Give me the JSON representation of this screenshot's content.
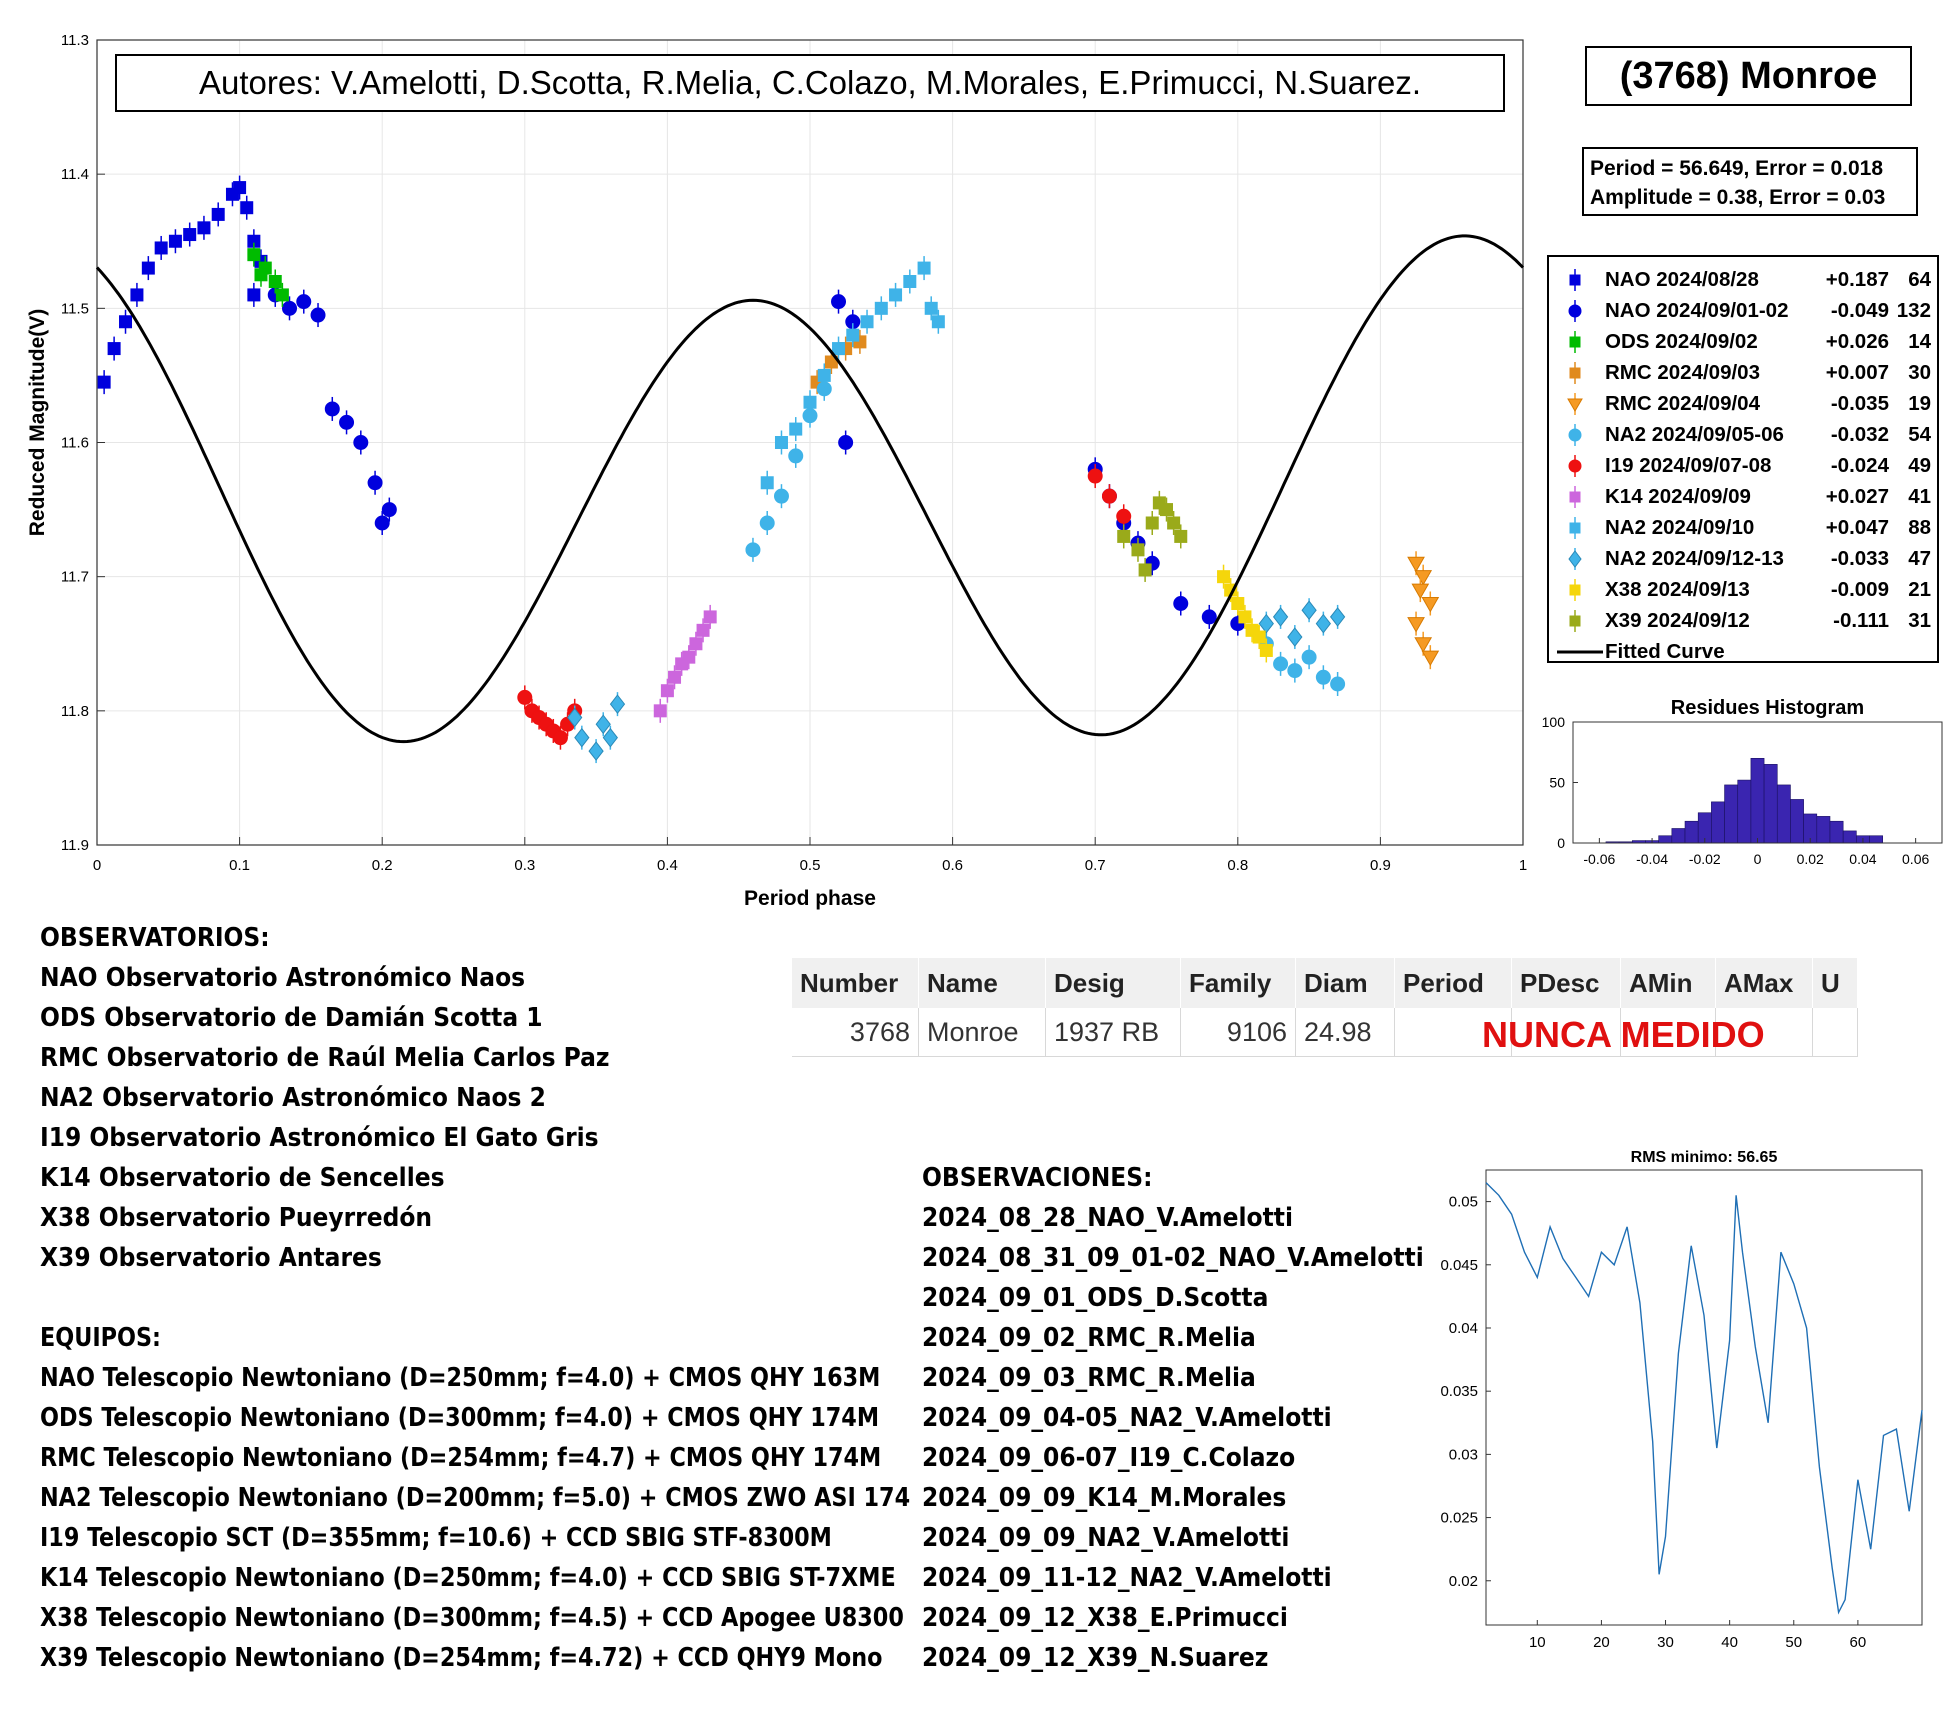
{
  "chart_data": [
    {
      "type": "scatter",
      "title": "",
      "xlabel": "Period phase",
      "ylabel": "Reduced Magnitude(V)",
      "xlim": [
        0,
        1
      ],
      "ylim": [
        11.3,
        11.9
      ],
      "y_reversed": true,
      "x_ticks": [
        "0",
        "0.1",
        "0.2",
        "0.3",
        "0.4",
        "0.5",
        "0.6",
        "0.7",
        "0.8",
        "0.9",
        "1"
      ],
      "y_ticks": [
        "11.3",
        "11.4",
        "11.5",
        "11.6",
        "11.7",
        "11.8",
        "11.9"
      ],
      "grid": true,
      "legend_position": "right",
      "authors": "Autores: V.Amelotti, D.Scotta, R.Melia, C.Colazo, M.Morales, E.Primucci, N.Suarez.",
      "target": "(3768) Monroe",
      "period_text": "Period =  56.649, Error = 0.018",
      "amplitude_text": "Amplitude = 0.38, Error = 0.03",
      "fitted_curve": {
        "name": "Fitted Curve",
        "mean": 11.645,
        "harmonics": [
          {
            "k": 1,
            "cos": -0.0226,
            "sin": 0.0085
          },
          {
            "k": 2,
            "cos": -0.1528,
            "sin": 0.0853
          }
        ]
      },
      "series": [
        {
          "name": "NAO 2024/08/28",
          "offset": "+0.187",
          "count": "64",
          "marker": "square",
          "color": "#0000dd",
          "points": [
            [
              0.005,
              11.555
            ],
            [
              0.012,
              11.53
            ],
            [
              0.02,
              11.51
            ],
            [
              0.028,
              11.49
            ],
            [
              0.036,
              11.47
            ],
            [
              0.045,
              11.455
            ],
            [
              0.055,
              11.45
            ],
            [
              0.065,
              11.445
            ],
            [
              0.075,
              11.44
            ],
            [
              0.085,
              11.43
            ],
            [
              0.095,
              11.415
            ],
            [
              0.1,
              11.41
            ],
            [
              0.105,
              11.425
            ],
            [
              0.11,
              11.45
            ],
            [
              0.115,
              11.465
            ],
            [
              0.11,
              11.49
            ]
          ]
        },
        {
          "name": "NAO 2024/09/01-02",
          "offset": "-0.049",
          "count": "132",
          "marker": "circle",
          "color": "#0000dd",
          "points": [
            [
              0.125,
              11.49
            ],
            [
              0.135,
              11.5
            ],
            [
              0.145,
              11.495
            ],
            [
              0.155,
              11.505
            ],
            [
              0.165,
              11.575
            ],
            [
              0.175,
              11.585
            ],
            [
              0.185,
              11.6
            ],
            [
              0.195,
              11.63
            ],
            [
              0.205,
              11.65
            ],
            [
              0.2,
              11.66
            ],
            [
              0.52,
              11.495
            ],
            [
              0.53,
              11.51
            ],
            [
              0.525,
              11.6
            ],
            [
              0.7,
              11.62
            ],
            [
              0.71,
              11.64
            ],
            [
              0.72,
              11.66
            ],
            [
              0.73,
              11.675
            ],
            [
              0.74,
              11.69
            ],
            [
              0.76,
              11.72
            ],
            [
              0.78,
              11.73
            ],
            [
              0.8,
              11.735
            ]
          ]
        },
        {
          "name": "ODS 2024/09/02",
          "offset": "+0.026",
          "count": "14",
          "marker": "square",
          "color": "#00bb00",
          "points": [
            [
              0.11,
              11.46
            ],
            [
              0.118,
              11.47
            ],
            [
              0.125,
              11.48
            ],
            [
              0.13,
              11.49
            ],
            [
              0.115,
              11.475
            ]
          ]
        },
        {
          "name": "RMC 2024/09/03",
          "offset": "+0.007",
          "count": "30",
          "marker": "square",
          "color": "#e08a1e",
          "points": [
            [
              0.505,
              11.555
            ],
            [
              0.515,
              11.54
            ],
            [
              0.525,
              11.53
            ],
            [
              0.535,
              11.525
            ]
          ]
        },
        {
          "name": "RMC 2024/09/04",
          "offset": "-0.035",
          "count": "19",
          "marker": "triangle-down",
          "color": "#f59a23",
          "points": [
            [
              0.925,
              11.69
            ],
            [
              0.93,
              11.7
            ],
            [
              0.935,
              11.72
            ],
            [
              0.925,
              11.735
            ],
            [
              0.93,
              11.75
            ],
            [
              0.935,
              11.76
            ],
            [
              0.928,
              11.71
            ]
          ]
        },
        {
          "name": "NA2 2024/09/05-06",
          "offset": "-0.032",
          "count": "54",
          "marker": "circle",
          "color": "#3fb3e8",
          "points": [
            [
              0.46,
              11.68
            ],
            [
              0.47,
              11.66
            ],
            [
              0.48,
              11.64
            ],
            [
              0.49,
              11.61
            ],
            [
              0.5,
              11.58
            ],
            [
              0.51,
              11.56
            ],
            [
              0.82,
              11.75
            ],
            [
              0.83,
              11.765
            ],
            [
              0.84,
              11.77
            ],
            [
              0.85,
              11.76
            ],
            [
              0.86,
              11.775
            ],
            [
              0.87,
              11.78
            ]
          ]
        },
        {
          "name": "I19 2024/09/07-08",
          "offset": "-0.024",
          "count": "49",
          "marker": "circle",
          "color": "#ee1111",
          "points": [
            [
              0.3,
              11.79
            ],
            [
              0.305,
              11.8
            ],
            [
              0.31,
              11.805
            ],
            [
              0.315,
              11.81
            ],
            [
              0.32,
              11.815
            ],
            [
              0.325,
              11.82
            ],
            [
              0.33,
              11.81
            ],
            [
              0.335,
              11.8
            ],
            [
              0.7,
              11.625
            ],
            [
              0.71,
              11.64
            ],
            [
              0.72,
              11.655
            ]
          ]
        },
        {
          "name": "K14 2024/09/09",
          "offset": "+0.027",
          "count": "41",
          "marker": "square",
          "color": "#cc66dd",
          "points": [
            [
              0.395,
              11.8
            ],
            [
              0.4,
              11.785
            ],
            [
              0.405,
              11.775
            ],
            [
              0.41,
              11.765
            ],
            [
              0.415,
              11.76
            ],
            [
              0.42,
              11.75
            ],
            [
              0.425,
              11.74
            ],
            [
              0.43,
              11.73
            ]
          ]
        },
        {
          "name": "NA2 2024/09/10",
          "offset": "+0.047",
          "count": "88",
          "marker": "square",
          "color": "#3fb3e8",
          "points": [
            [
              0.47,
              11.63
            ],
            [
              0.48,
              11.6
            ],
            [
              0.49,
              11.59
            ],
            [
              0.5,
              11.57
            ],
            [
              0.51,
              11.55
            ],
            [
              0.52,
              11.53
            ],
            [
              0.53,
              11.52
            ],
            [
              0.54,
              11.51
            ],
            [
              0.55,
              11.5
            ],
            [
              0.56,
              11.49
            ],
            [
              0.57,
              11.48
            ],
            [
              0.58,
              11.47
            ],
            [
              0.585,
              11.5
            ],
            [
              0.59,
              11.51
            ]
          ]
        },
        {
          "name": "NA2 2024/09/12-13",
          "offset": "-0.033",
          "count": "47",
          "marker": "diamond",
          "color": "#3fb3e8",
          "points": [
            [
              0.335,
              11.805
            ],
            [
              0.34,
              11.82
            ],
            [
              0.35,
              11.83
            ],
            [
              0.355,
              11.81
            ],
            [
              0.36,
              11.82
            ],
            [
              0.365,
              11.795
            ],
            [
              0.82,
              11.735
            ],
            [
              0.83,
              11.73
            ],
            [
              0.84,
              11.745
            ],
            [
              0.85,
              11.725
            ],
            [
              0.86,
              11.735
            ],
            [
              0.87,
              11.73
            ]
          ]
        },
        {
          "name": "X38 2024/09/13",
          "offset": "-0.009",
          "count": "21",
          "marker": "square",
          "color": "#f5d60b",
          "points": [
            [
              0.79,
              11.7
            ],
            [
              0.795,
              11.71
            ],
            [
              0.8,
              11.72
            ],
            [
              0.805,
              11.73
            ],
            [
              0.81,
              11.74
            ],
            [
              0.815,
              11.745
            ],
            [
              0.82,
              11.755
            ]
          ]
        },
        {
          "name": "X39 2024/09/12",
          "offset": "-0.111",
          "count": "31",
          "marker": "square",
          "color": "#9aaa1a",
          "points": [
            [
              0.72,
              11.67
            ],
            [
              0.73,
              11.68
            ],
            [
              0.74,
              11.66
            ],
            [
              0.745,
              11.645
            ],
            [
              0.75,
              11.65
            ],
            [
              0.755,
              11.66
            ],
            [
              0.76,
              11.67
            ],
            [
              0.735,
              11.695
            ]
          ]
        }
      ]
    },
    {
      "type": "bar",
      "title": "Residues Histogram",
      "xlim": [
        -0.07,
        0.07
      ],
      "ylim": [
        0,
        100
      ],
      "x_ticks": [
        "-0.06",
        "-0.04",
        "-0.02",
        "0",
        "0.02",
        "0.04",
        "0.06"
      ],
      "y_ticks": [
        "0",
        "50",
        "100"
      ],
      "bin_width": 0.005,
      "bin_centers": [
        -0.055,
        -0.05,
        -0.045,
        -0.04,
        -0.035,
        -0.03,
        -0.025,
        -0.02,
        -0.015,
        -0.01,
        -0.005,
        0,
        0.005,
        0.01,
        0.015,
        0.02,
        0.025,
        0.03,
        0.035,
        0.04,
        0.045
      ],
      "values": [
        1,
        1,
        2,
        2,
        6,
        12,
        18,
        25,
        34,
        48,
        52,
        70,
        65,
        48,
        36,
        24,
        22,
        18,
        10,
        6,
        6
      ],
      "color": "#3a25b0"
    },
    {
      "type": "line",
      "title": "RMS minimo: 56.65",
      "xlim": [
        2,
        70
      ],
      "ylim": [
        0.0165,
        0.0525
      ],
      "x_ticks": [
        "10",
        "20",
        "30",
        "40",
        "50",
        "60"
      ],
      "y_ticks": [
        "0.02",
        "0.025",
        "0.03",
        "0.035",
        "0.04",
        "0.045",
        "0.05"
      ],
      "color": "#1f6fb5",
      "x": [
        2,
        4,
        6,
        8,
        10,
        12,
        14,
        16,
        18,
        20,
        22,
        24,
        26,
        28,
        29,
        30,
        32,
        34,
        36,
        38,
        40,
        41,
        42,
        44,
        46,
        48,
        50,
        52,
        54,
        56,
        57,
        58,
        60,
        62,
        64,
        66,
        68,
        70
      ],
      "y": [
        0.0515,
        0.0505,
        0.049,
        0.046,
        0.044,
        0.048,
        0.0455,
        0.044,
        0.0425,
        0.046,
        0.045,
        0.048,
        0.042,
        0.031,
        0.0205,
        0.0235,
        0.038,
        0.0465,
        0.041,
        0.0305,
        0.039,
        0.0505,
        0.046,
        0.0385,
        0.0325,
        0.046,
        0.0435,
        0.04,
        0.029,
        0.021,
        0.0175,
        0.0185,
        0.028,
        0.0225,
        0.0315,
        0.032,
        0.0255,
        0.0335
      ]
    }
  ],
  "table": {
    "headers": [
      "Number",
      "Name",
      "Desig",
      "Family",
      "Diam",
      "Period",
      "PDesc",
      "AMin",
      "AMax",
      "U"
    ],
    "row": [
      "3768",
      "Monroe",
      "1937 RB",
      "9106",
      "24.98",
      "",
      "",
      "",
      "",
      ""
    ],
    "note": "NUNCA MEDIDO"
  },
  "observatorios": {
    "heading": "OBSERVATORIOS:",
    "items": [
      "NAO Observatorio Astronómico Naos",
      "ODS Observatorio de Damián Scotta 1",
      "RMC Observatorio de Raúl Melia Carlos Paz",
      "NA2 Observatorio Astronómico Naos 2",
      "I19 Observatorio Astronómico El Gato Gris",
      "K14 Observatorio de Sencelles",
      "X38 Observatorio Pueyrredón",
      "X39 Observatorio Antares"
    ]
  },
  "equipos": {
    "heading": "EQUIPOS:",
    "items": [
      "NAO Telescopio Newtoniano (D=250mm; f=4.0) + CMOS QHY 163M",
      "ODS Telescopio Newtoniano (D=300mm; f=4.0) + CMOS QHY 174M",
      "RMC Telescopio Newtoniano (D=254mm; f=4.7) + CMOS QHY 174M",
      "NA2 Telescopio Newtoniano (D=200mm; f=5.0) + CMOS ZWO ASI 174",
      "I19 Telescopio SCT (D=355mm; f=10.6) + CCD SBIG STF-8300M",
      "K14 Telescopio Newtoniano (D=250mm; f=4.0) + CCD SBIG ST-7XME",
      "X38 Telescopio Newtoniano (D=300mm; f=4.5) + CCD Apogee U8300",
      "X39 Telescopio Newtoniano (D=254mm; f=4.72) + CCD QHY9 Mono"
    ]
  },
  "observaciones": {
    "heading": "OBSERVACIONES:",
    "items": [
      "2024_08_28_NAO_V.Amelotti",
      "2024_08_31_09_01-02_NAO_V.Amelotti",
      "2024_09_01_ODS_D.Scotta",
      "2024_09_02_RMC_R.Melia",
      "2024_09_03_RMC_R.Melia",
      "2024_09_04-05_NA2_V.Amelotti",
      "2024_09_06-07_I19_C.Colazo",
      "2024_09_09_K14_M.Morales",
      "2024_09_09_NA2_V.Amelotti",
      "2024_09_11-12_NA2_V.Amelotti",
      "2024_09_12_X38_E.Primucci",
      "2024_09_12_X39_N.Suarez"
    ]
  }
}
